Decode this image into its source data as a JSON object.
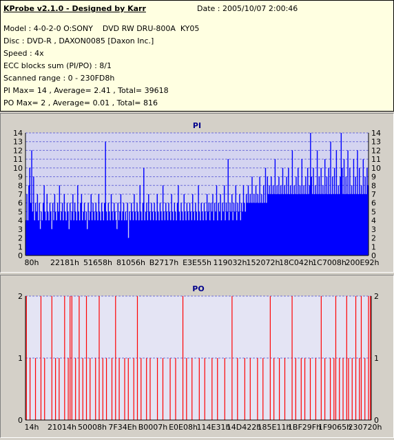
{
  "info": {
    "title": "KProbe v2.1.0 - Designed by Karr",
    "date": "Date : 2005/10/07 2:00:46",
    "lines": [
      "Model : 4-0-2-0 O:SONY    DVD RW DRU-800A  KY05",
      "Disc : DVD-R , DAXON0085 [Daxon Inc.]",
      "Speed : 4x",
      "ECC blocks sum (PI/PO) : 8/1",
      "Scanned range : 0 - 230FD8h",
      "PI Max= 14 , Average= 2.41 , Total= 39618",
      "PO Max= 2 , Average= 0.01 , Total= 816"
    ]
  },
  "chart_data": [
    {
      "type": "bar",
      "title": "PI",
      "color": "#0000ff",
      "ylim": [
        0,
        14
      ],
      "yticks": [
        0,
        1,
        2,
        3,
        4,
        5,
        6,
        7,
        8,
        9,
        10,
        11,
        12,
        13,
        14
      ],
      "xticks": [
        "80h",
        "22181h",
        "51658h",
        "81056h",
        "B2717h",
        "E3E55h",
        "119032h",
        "152072h",
        "18C042h",
        "1C7008h",
        "200E92h"
      ],
      "values": [
        4,
        7,
        4,
        8,
        10,
        6,
        12,
        5,
        9,
        4,
        6,
        5,
        7,
        4,
        6,
        3,
        5,
        4,
        6,
        8,
        5,
        4,
        7,
        5,
        4,
        6,
        5,
        3,
        6,
        4,
        7,
        5,
        4,
        6,
        5,
        8,
        4,
        5,
        6,
        4,
        7,
        5,
        4,
        6,
        5,
        3,
        6,
        4,
        5,
        7,
        4,
        6,
        5,
        4,
        8,
        5,
        4,
        6,
        7,
        4,
        5,
        6,
        4,
        5,
        3,
        6,
        4,
        5,
        7,
        4,
        6,
        5,
        4,
        6,
        5,
        4,
        7,
        5,
        4,
        6,
        5,
        4,
        6,
        13,
        5,
        4,
        6,
        5,
        4,
        7,
        5,
        4,
        6,
        5,
        4,
        3,
        6,
        4,
        5,
        7,
        4,
        5,
        6,
        4,
        5,
        4,
        6,
        2,
        5,
        4,
        6,
        5,
        4,
        7,
        5,
        4,
        6,
        5,
        4,
        8,
        5,
        4,
        6,
        10,
        4,
        5,
        6,
        4,
        7,
        5,
        4,
        6,
        5,
        4,
        6,
        5,
        4,
        7,
        5,
        4,
        6,
        5,
        4,
        8,
        5,
        4,
        6,
        5,
        4,
        6,
        5,
        4,
        7,
        5,
        4,
        6,
        5,
        4,
        6,
        8,
        5,
        4,
        6,
        5,
        4,
        7,
        5,
        4,
        6,
        5,
        4,
        6,
        5,
        4,
        7,
        5,
        4,
        6,
        5,
        4,
        8,
        5,
        4,
        6,
        5,
        4,
        6,
        5,
        4,
        7,
        5,
        6,
        4,
        6,
        5,
        7,
        4,
        6,
        5,
        8,
        4,
        6,
        5,
        7,
        4,
        6,
        5,
        8,
        4,
        6,
        5,
        11,
        4,
        6,
        5,
        7,
        4,
        6,
        5,
        8,
        4,
        6,
        5,
        7,
        4,
        6,
        5,
        8,
        6,
        5,
        7,
        6,
        8,
        6,
        7,
        6,
        9,
        6,
        7,
        6,
        8,
        6,
        7,
        6,
        9,
        6,
        7,
        6,
        8,
        6,
        10,
        6,
        9,
        7,
        8,
        7,
        9,
        7,
        8,
        7,
        11,
        7,
        8,
        7,
        9,
        7,
        8,
        7,
        10,
        7,
        8,
        7,
        9,
        7,
        10,
        7,
        8,
        7,
        12,
        7,
        8,
        7,
        9,
        7,
        10,
        7,
        8,
        7,
        11,
        7,
        8,
        7,
        9,
        7,
        10,
        7,
        8,
        14,
        9,
        7,
        10,
        7,
        8,
        7,
        12,
        7,
        9,
        7,
        10,
        7,
        8,
        7,
        11,
        7,
        9,
        7,
        10,
        7,
        13,
        7,
        9,
        7,
        10,
        7,
        12,
        7,
        8,
        7,
        9,
        14,
        10,
        7,
        11,
        7,
        9,
        7,
        12,
        7,
        10,
        7,
        8,
        7,
        11,
        7,
        9,
        7,
        12,
        7,
        10,
        7,
        8,
        7,
        11,
        7,
        9,
        7,
        10,
        8
      ]
    },
    {
      "type": "bar",
      "title": "PO",
      "color": "#ff0000",
      "ylim": [
        0,
        2
      ],
      "yticks": [
        0,
        1,
        2
      ],
      "xticks": [
        "14h",
        "21014h",
        "50008h",
        "7F34Eh",
        "B0007h",
        "E0E08h",
        "114E31h",
        "14D422h",
        "185E11h",
        "1BF29Fh",
        "1F9065h",
        "230720h"
      ],
      "values": [
        2,
        0,
        1,
        0,
        0,
        1,
        0,
        0,
        2,
        0,
        1,
        0,
        0,
        0,
        2,
        0,
        1,
        0,
        1,
        0,
        0,
        2,
        0,
        1,
        2,
        2,
        0,
        1,
        0,
        2,
        0,
        1,
        0,
        2,
        0,
        1,
        0,
        0,
        1,
        0,
        2,
        0,
        1,
        0,
        1,
        0,
        0,
        1,
        0,
        2,
        0,
        1,
        0,
        0,
        1,
        0,
        1,
        0,
        0,
        1,
        0,
        2,
        0,
        1,
        0,
        0,
        1,
        0,
        1,
        0,
        0,
        0,
        1,
        0,
        0,
        1,
        0,
        0,
        0,
        1,
        0,
        0,
        1,
        0,
        0,
        0,
        2,
        0,
        1,
        0,
        0,
        1,
        0,
        0,
        0,
        1,
        0,
        0,
        1,
        0,
        0,
        0,
        1,
        0,
        0,
        1,
        0,
        0,
        0,
        1,
        0,
        0,
        0,
        2,
        0,
        0,
        1,
        0,
        0,
        0,
        1,
        0,
        0,
        1,
        0,
        0,
        0,
        1,
        0,
        0,
        1,
        0,
        0,
        0,
        2,
        0,
        1,
        0,
        0,
        1,
        0,
        0,
        1,
        0,
        0,
        0,
        2,
        0,
        1,
        0,
        0,
        1,
        0,
        1,
        0,
        0,
        1,
        0,
        0,
        1,
        0,
        0,
        2,
        0,
        1,
        0,
        0,
        1,
        0,
        1,
        2,
        0,
        1,
        0,
        1,
        0,
        2,
        1,
        0,
        1,
        0,
        2,
        0,
        1,
        2,
        0,
        1,
        0,
        2,
        2
      ]
    }
  ]
}
